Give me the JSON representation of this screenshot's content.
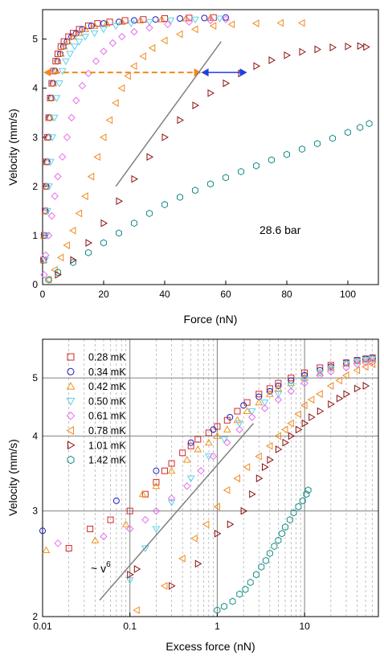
{
  "chart_data": [
    {
      "type": "scatter",
      "xlabel": "Force (nN)",
      "ylabel": "Velocity (mm/s)",
      "xlim": [
        0,
        110
      ],
      "ylim": [
        0,
        5.6
      ],
      "xticks": [
        0,
        20,
        40,
        60,
        80,
        100
      ],
      "yticks": [
        0,
        1,
        2,
        3,
        4,
        5
      ],
      "grid": false,
      "annotation": "28.6 bar",
      "series": [
        {
          "name": "0.28 mK",
          "color": "#d62728",
          "marker": "square",
          "x": [
            0.3,
            0.5,
            0.8,
            1.0,
            1.3,
            1.6,
            2.0,
            2.5,
            3.0,
            3.6,
            4.3,
            5.0,
            6.0,
            7.0,
            8.5,
            10,
            12,
            15,
            18,
            22,
            27,
            33,
            40,
            48,
            56
          ],
          "y": [
            0.5,
            1.0,
            1.5,
            2.0,
            2.5,
            3.0,
            3.4,
            3.8,
            4.1,
            4.35,
            4.55,
            4.7,
            4.85,
            4.95,
            5.05,
            5.12,
            5.2,
            5.27,
            5.32,
            5.35,
            5.38,
            5.4,
            5.42,
            5.43,
            5.44
          ]
        },
        {
          "name": "0.34 mK",
          "color": "#1f1fbf",
          "marker": "circle",
          "x": [
            0.4,
            0.6,
            0.9,
            1.2,
            1.5,
            1.9,
            2.3,
            2.8,
            3.4,
            4.1,
            4.9,
            5.8,
            6.8,
            8.0,
            9.5,
            11,
            13,
            16,
            20,
            25,
            30,
            37,
            45,
            53,
            60
          ],
          "y": [
            0.5,
            1.0,
            1.5,
            2.0,
            2.5,
            3.0,
            3.4,
            3.8,
            4.1,
            4.35,
            4.55,
            4.7,
            4.85,
            4.95,
            5.05,
            5.12,
            5.2,
            5.27,
            5.32,
            5.35,
            5.38,
            5.4,
            5.42,
            5.43,
            5.44
          ]
        },
        {
          "name": "0.42 mK",
          "color": "#e67e22",
          "marker": "triangle-up",
          "x": [
            0.3,
            0.5,
            0.9,
            1.2,
            1.5,
            1.9,
            2.3,
            2.9,
            3.5,
            4.2,
            5.0,
            6.0,
            7.0,
            8.3,
            10,
            12,
            14,
            17,
            21,
            26,
            32,
            39,
            47,
            55
          ],
          "y": [
            0.5,
            1.0,
            1.5,
            2.0,
            2.5,
            3.0,
            3.4,
            3.8,
            4.1,
            4.35,
            4.55,
            4.7,
            4.85,
            4.95,
            5.05,
            5.12,
            5.2,
            5.27,
            5.32,
            5.35,
            5.38,
            5.4,
            5.42,
            5.43
          ]
        },
        {
          "name": "0.50 mK",
          "color": "#5fd0e8",
          "marker": "triangle-down",
          "x": [
            0.8,
            1.2,
            1.6,
            2.1,
            2.6,
            3.2,
            3.9,
            4.6,
            5.5,
            6.5,
            7.6,
            9.0,
            10.5,
            12,
            14,
            17,
            20,
            24,
            29,
            35,
            42,
            50,
            58
          ],
          "y": [
            0.5,
            1.0,
            1.5,
            2.0,
            2.5,
            3.0,
            3.4,
            3.8,
            4.1,
            4.35,
            4.55,
            4.7,
            4.85,
            4.95,
            5.05,
            5.12,
            5.2,
            5.27,
            5.32,
            5.35,
            5.38,
            5.4,
            5.42
          ]
        },
        {
          "name": "0.61 mK",
          "color": "#e66ef0",
          "marker": "diamond",
          "x": [
            0.5,
            1.0,
            2.0,
            3.0,
            4.0,
            5.0,
            6.5,
            8.0,
            9.5,
            11,
            13,
            15,
            17.5,
            20,
            23,
            26,
            30,
            35,
            41,
            48,
            55,
            60
          ],
          "y": [
            0.2,
            0.6,
            1.0,
            1.4,
            1.8,
            2.2,
            2.6,
            3.0,
            3.4,
            3.75,
            4.05,
            4.3,
            4.55,
            4.75,
            4.92,
            5.05,
            5.15,
            5.23,
            5.3,
            5.35,
            5.38,
            5.4
          ]
        },
        {
          "name": "0.78 mK",
          "color": "#ef8a1e",
          "marker": "triangle-left",
          "x": [
            2,
            4,
            6,
            8,
            10,
            12,
            14,
            16,
            18,
            20,
            22,
            24,
            26,
            28,
            30,
            33,
            36,
            40,
            45,
            50,
            56,
            62,
            70,
            78,
            85
          ],
          "y": [
            0.1,
            0.3,
            0.55,
            0.8,
            1.1,
            1.45,
            1.8,
            2.2,
            2.6,
            3.0,
            3.35,
            3.7,
            4.0,
            4.25,
            4.45,
            4.65,
            4.82,
            4.97,
            5.1,
            5.2,
            5.27,
            5.3,
            5.32,
            5.33,
            5.33
          ]
        },
        {
          "name": "1.01 mK",
          "color": "#8b0f0f",
          "marker": "triangle-right",
          "x": [
            5,
            10,
            15,
            20,
            25,
            30,
            35,
            40,
            45,
            50,
            55,
            60,
            65,
            70,
            75,
            80,
            85,
            90,
            95,
            100,
            104,
            106
          ],
          "y": [
            0.2,
            0.5,
            0.85,
            1.25,
            1.7,
            2.15,
            2.6,
            3.0,
            3.35,
            3.65,
            3.9,
            4.1,
            4.3,
            4.45,
            4.57,
            4.67,
            4.74,
            4.79,
            4.83,
            4.85,
            4.86,
            4.84
          ]
        },
        {
          "name": "1.42 mK",
          "color": "#1a8f88",
          "marker": "hexagon",
          "x": [
            2,
            5,
            10,
            15,
            20,
            25,
            30,
            35,
            40,
            45,
            50,
            55,
            60,
            65,
            70,
            75,
            80,
            85,
            90,
            95,
            100,
            104,
            107
          ],
          "y": [
            0.1,
            0.25,
            0.45,
            0.65,
            0.85,
            1.05,
            1.25,
            1.45,
            1.63,
            1.78,
            1.92,
            2.05,
            2.18,
            2.3,
            2.42,
            2.54,
            2.65,
            2.76,
            2.87,
            2.98,
            3.1,
            3.2,
            3.28
          ]
        }
      ]
    },
    {
      "type": "scatter",
      "xlabel": "Excess force (nN)",
      "ylabel": "Velocity (mm/s)",
      "xscale": "log",
      "yscale": "log",
      "xlim": [
        0.01,
        70
      ],
      "ylim": [
        2,
        5.8
      ],
      "xticks": [
        0.01,
        0.1,
        1,
        10
      ],
      "xtick_labels": [
        "0.01",
        "0.1",
        "1",
        "10"
      ],
      "yticks": [
        2,
        3,
        4,
        5
      ],
      "grid": true,
      "legend": "top-left",
      "annotation": "~ v",
      "annotation_sup": "6",
      "series": [
        {
          "name": "0.28 mK",
          "color": "#d62728",
          "marker": "square",
          "x": [
            0.02,
            0.035,
            0.06,
            0.1,
            0.15,
            0.2,
            0.25,
            0.3,
            0.4,
            0.5,
            0.6,
            0.8,
            1.0,
            1.3,
            1.7,
            2.2,
            3,
            4,
            5,
            7,
            10,
            15,
            20,
            30,
            40,
            50,
            60
          ],
          "y": [
            2.6,
            2.8,
            2.9,
            3.0,
            3.2,
            3.35,
            3.5,
            3.6,
            3.75,
            3.85,
            3.95,
            4.05,
            4.15,
            4.25,
            4.4,
            4.55,
            4.7,
            4.8,
            4.9,
            5.0,
            5.1,
            5.2,
            5.25,
            5.3,
            5.35,
            5.38,
            5.4
          ]
        },
        {
          "name": "0.34 mK",
          "color": "#1f1fbf",
          "marker": "circle",
          "x": [
            0.01,
            0.07,
            0.2,
            0.5,
            0.9,
            1.4,
            2,
            3,
            4,
            5,
            7,
            10,
            15,
            20,
            30,
            40,
            50,
            60
          ],
          "y": [
            2.78,
            3.12,
            3.5,
            3.9,
            4.1,
            4.3,
            4.5,
            4.65,
            4.75,
            4.85,
            4.95,
            5.05,
            5.15,
            5.22,
            5.3,
            5.35,
            5.38,
            5.4
          ]
        },
        {
          "name": "0.42 mK",
          "color": "#f0961e",
          "marker": "triangle-up",
          "x": [
            0.011,
            0.04,
            0.09,
            0.14,
            0.2,
            0.3,
            0.45,
            0.6,
            0.8,
            1.0,
            1.3,
            1.7,
            2.2,
            3,
            4,
            5,
            7,
            10,
            15,
            20,
            30,
            40,
            50,
            60
          ],
          "y": [
            2.58,
            2.68,
            2.85,
            3.2,
            3.3,
            3.5,
            3.65,
            3.8,
            3.9,
            4.0,
            4.1,
            4.25,
            4.4,
            4.55,
            4.7,
            4.8,
            4.9,
            5.0,
            5.1,
            5.2,
            5.28,
            5.33,
            5.36,
            5.38
          ]
        },
        {
          "name": "0.50 mK",
          "color": "#5fd0e8",
          "marker": "triangle-down",
          "x": [
            0.1,
            0.15,
            0.2,
            0.3,
            0.5,
            0.8,
            1.2,
            1.8,
            2.5,
            3.5,
            5,
            7,
            10,
            15,
            20,
            30,
            40,
            50,
            60
          ],
          "y": [
            2.3,
            2.6,
            2.8,
            3.1,
            3.4,
            3.7,
            3.95,
            4.2,
            4.4,
            4.55,
            4.7,
            4.85,
            4.98,
            5.1,
            5.18,
            5.28,
            5.33,
            5.36,
            5.38
          ]
        },
        {
          "name": "0.61 mK",
          "color": "#e66ef0",
          "marker": "diamond",
          "x": [
            0.015,
            0.05,
            0.1,
            0.15,
            0.2,
            0.3,
            0.45,
            0.65,
            0.9,
            1.3,
            1.8,
            2.5,
            3.5,
            5,
            7,
            10,
            15,
            20,
            30,
            40,
            50,
            60
          ],
          "y": [
            2.65,
            2.72,
            2.8,
            2.9,
            3.0,
            3.15,
            3.3,
            3.5,
            3.7,
            3.9,
            4.1,
            4.3,
            4.45,
            4.6,
            4.75,
            4.9,
            5.05,
            5.12,
            5.2,
            5.27,
            5.3,
            5.32
          ]
        },
        {
          "name": "0.78 mK",
          "color": "#ef8a1e",
          "marker": "triangle-left",
          "x": [
            0.12,
            0.25,
            0.4,
            0.55,
            0.75,
            1.0,
            1.3,
            1.7,
            2.2,
            3,
            4,
            5,
            6,
            7,
            8.5,
            10,
            12,
            15,
            20,
            25,
            30,
            40,
            50,
            60
          ],
          "y": [
            2.05,
            2.25,
            2.5,
            2.7,
            2.85,
            3.05,
            3.25,
            3.4,
            3.55,
            3.7,
            3.85,
            4.0,
            4.1,
            4.2,
            4.35,
            4.5,
            4.6,
            4.7,
            4.85,
            4.95,
            5.05,
            5.15,
            5.22,
            5.27
          ]
        },
        {
          "name": "1.01 mK",
          "color": "#8b0f0f",
          "marker": "triangle-right",
          "x": [
            0.1,
            0.12,
            0.3,
            0.6,
            1.0,
            1.4,
            2.0,
            2.5,
            3.0,
            3.5,
            4,
            5,
            6,
            7,
            8.5,
            10,
            12,
            15,
            20,
            25,
            30,
            40,
            50
          ],
          "y": [
            2.35,
            2.4,
            2.25,
            2.45,
            2.75,
            2.85,
            3.0,
            3.2,
            3.4,
            3.55,
            3.65,
            3.8,
            3.9,
            4.0,
            4.1,
            4.2,
            4.3,
            4.4,
            4.52,
            4.62,
            4.7,
            4.8,
            4.85
          ]
        },
        {
          "name": "1.42 mK",
          "color": "#1a8f88",
          "marker": "hexagon",
          "x": [
            1.0,
            1.2,
            1.5,
            1.8,
            2.1,
            2.4,
            2.8,
            3.2,
            3.6,
            4.0,
            4.5,
            5.0,
            5.5,
            6.0,
            6.8,
            7.5,
            8.5,
            9.5,
            10.5,
            11
          ],
          "y": [
            2.05,
            2.08,
            2.12,
            2.18,
            2.22,
            2.28,
            2.35,
            2.42,
            2.48,
            2.55,
            2.62,
            2.68,
            2.75,
            2.82,
            2.9,
            2.98,
            3.05,
            3.12,
            3.2,
            3.25
          ]
        }
      ]
    }
  ]
}
